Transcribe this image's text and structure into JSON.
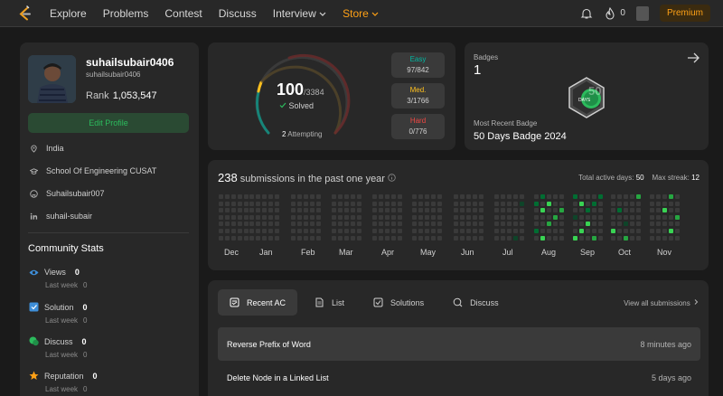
{
  "nav": {
    "items": [
      "Explore",
      "Problems",
      "Contest",
      "Discuss",
      "Interview",
      "Store"
    ],
    "streak_count": "0",
    "premium_label": "Premium",
    "icons": [
      "leetcode-logo-icon",
      "chevron-down-icon",
      "bell-icon",
      "fire-icon"
    ]
  },
  "colors": {
    "accent": "#ffa116",
    "easy": "#00b8a3",
    "medium": "#ffc01e",
    "hard": "#ef4743",
    "green": "#2cbb5d"
  },
  "profile": {
    "username": "suhailsubair0406",
    "handle": "suhailsubair0406",
    "rank_label": "Rank",
    "rank_value": "1,053,547",
    "edit_label": "Edit Profile",
    "location": "India",
    "school": "School Of Engineering CUSAT",
    "github": "Suhailsubair007",
    "linkedin": "suhail-subair"
  },
  "community": {
    "title": "Community Stats",
    "last_week_label": "Last week",
    "stats": [
      {
        "label": "Views",
        "value": "0",
        "last_week": "0"
      },
      {
        "label": "Solution",
        "value": "0",
        "last_week": "0"
      },
      {
        "label": "Discuss",
        "value": "0",
        "last_week": "0"
      },
      {
        "label": "Reputation",
        "value": "0",
        "last_week": "0"
      }
    ]
  },
  "solved": {
    "count": "100",
    "total": "/3384",
    "label": "Solved",
    "attempting_count": "2",
    "attempting_label": "Attempting",
    "easy": {
      "label": "Easy",
      "value": "97/842"
    },
    "medium": {
      "label": "Med.",
      "value": "3/1766"
    },
    "hard": {
      "label": "Hard",
      "value": "0/776"
    }
  },
  "badges": {
    "label": "Badges",
    "count": "1",
    "recent_label": "Most Recent Badge",
    "recent_name": "50 Days Badge 2024",
    "badge_text": "DAYS",
    "badge_number": "50"
  },
  "submissions": {
    "count": "238",
    "text": "submissions in the past one year",
    "active_days_label": "Total active days:",
    "active_days": "50",
    "max_streak_label": "Max streak:",
    "max_streak": "12",
    "months": [
      "Dec",
      "Jan",
      "Feb",
      "Mar",
      "Apr",
      "May",
      "Jun",
      "Jul",
      "Aug",
      "Sep",
      "Oct",
      "Nov"
    ]
  },
  "recent": {
    "tabs": [
      "Recent AC",
      "List",
      "Solutions",
      "Discuss"
    ],
    "view_all": "View all submissions",
    "items": [
      {
        "title": "Reverse Prefix of Word",
        "time": "8 minutes ago"
      },
      {
        "title": "Delete Node in a Linked List",
        "time": "5 days ago"
      }
    ]
  }
}
